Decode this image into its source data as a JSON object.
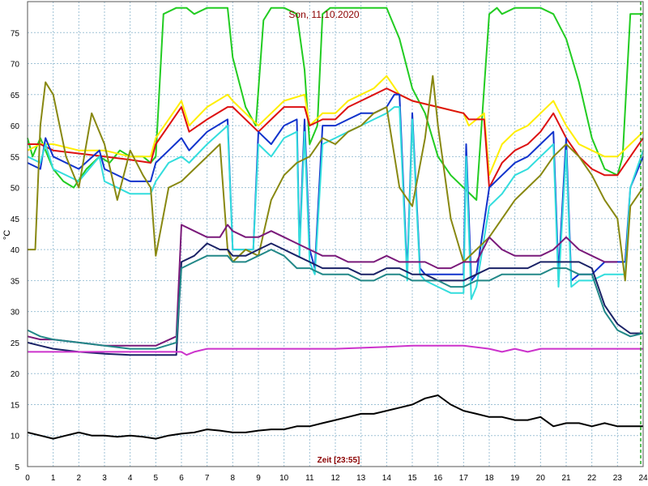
{
  "chart_data": {
    "type": "line",
    "title": "Son, 11.10.2020",
    "xlabel": "Zeit [23:55]",
    "ylabel": "°C",
    "xlim": [
      0,
      24
    ],
    "ylim": [
      5,
      80
    ],
    "x_ticks": [
      "0",
      "1",
      "2",
      "3",
      "4",
      "5",
      "6",
      "7",
      "8",
      "9",
      "10",
      "11",
      "12",
      "13",
      "14",
      "15",
      "16",
      "17",
      "18",
      "19",
      "20",
      "21",
      "22",
      "23",
      "24"
    ],
    "y_ticks": [
      "5",
      "10",
      "15",
      "20",
      "25",
      "30",
      "35",
      "40",
      "45",
      "50",
      "55",
      "60",
      "65",
      "70",
      "75"
    ],
    "grid": true,
    "series": [
      {
        "color": "#22cc22",
        "x": [
          0,
          0.2,
          0.5,
          0.7,
          1,
          1.4,
          1.8,
          2.3,
          2.8,
          3.2,
          3.6,
          4.0,
          4.5,
          4.8,
          5.0,
          5.3,
          5.8,
          6.2,
          6.5,
          7.0,
          7.5,
          7.8,
          8.0,
          8.5,
          8.9,
          9.2,
          9.5,
          10.0,
          10.5,
          10.8,
          11.0,
          11.3,
          11.5,
          11.8,
          12.0,
          12.5,
          13.0,
          13.5,
          14.0,
          14.5,
          15.0,
          15.5,
          16.0,
          16.5,
          17.0,
          17.5,
          18.0,
          18.3,
          18.5,
          19.0,
          19.5,
          20.0,
          20.5,
          21.0,
          21.5,
          22.0,
          22.5,
          23.0,
          23.2,
          23.5,
          24.0
        ],
        "y": [
          58,
          55,
          58,
          56,
          53,
          51,
          50,
          53,
          55,
          54,
          56,
          55,
          55,
          54,
          55,
          78,
          79,
          79,
          78,
          79,
          79,
          79,
          71,
          63,
          60,
          77,
          79,
          79,
          78,
          69,
          57,
          60,
          78,
          79,
          79,
          79,
          79,
          79,
          79,
          74,
          66,
          62,
          55,
          52,
          50,
          48,
          78,
          79,
          78,
          79,
          79,
          79,
          78,
          74,
          67,
          58,
          53,
          52,
          55,
          78,
          78
        ]
      },
      {
        "color": "#ffee00",
        "x": [
          0,
          0.5,
          1,
          2,
          3,
          4,
          4.8,
          5.0,
          5.5,
          6.0,
          6.3,
          7.0,
          7.8,
          8.0,
          9.0,
          9.5,
          10.0,
          10.8,
          11.0,
          11.5,
          12.0,
          12.5,
          13.0,
          13.5,
          14.0,
          14.5,
          15.0,
          16.0,
          17.0,
          17.2,
          17.8,
          18.0,
          18.5,
          19.0,
          19.5,
          20.0,
          20.5,
          21.0,
          21.5,
          22.0,
          22.5,
          23.0,
          23.5,
          24.0
        ],
        "y": [
          56,
          57,
          57,
          56,
          56,
          55,
          55,
          58,
          61,
          64,
          60,
          63,
          65,
          64,
          60,
          62,
          64,
          65,
          60,
          62,
          62,
          64,
          65,
          66,
          68,
          65,
          64,
          63,
          62,
          60,
          62,
          52,
          57,
          59,
          60,
          62,
          64,
          60,
          57,
          56,
          55,
          55,
          57,
          59
        ]
      },
      {
        "color": "#dd1111",
        "x": [
          0,
          0.5,
          1,
          2,
          3,
          4,
          4.8,
          5.0,
          5.5,
          6.0,
          6.3,
          7.0,
          7.8,
          8.0,
          9.0,
          9.5,
          10.0,
          10.8,
          11.0,
          11.5,
          12.0,
          12.5,
          13.0,
          13.5,
          14.0,
          14.5,
          15.0,
          16.0,
          17.0,
          17.2,
          17.8,
          18.0,
          18.5,
          19.0,
          19.5,
          20.0,
          20.5,
          21.0,
          21.5,
          22.0,
          22.5,
          23.0,
          23.5,
          24.0
        ],
        "y": [
          57,
          57,
          56,
          55.5,
          55,
          54.5,
          54,
          57,
          60,
          63,
          59,
          61,
          63,
          63,
          59,
          61,
          63,
          63,
          60,
          61,
          61,
          63,
          64,
          65,
          66,
          65,
          64,
          63,
          62,
          61,
          61,
          50,
          54,
          56,
          57,
          59,
          62,
          58,
          55,
          53,
          52,
          52,
          55,
          58
        ]
      },
      {
        "color": "#1133cc",
        "x": [
          0,
          0.5,
          0.7,
          1,
          2,
          2.8,
          3,
          4,
          4.8,
          5.0,
          5.5,
          6.0,
          6.3,
          7.0,
          7.8,
          8.0,
          8.8,
          9.0,
          9.5,
          10.0,
          10.5,
          10.6,
          10.8,
          11.0,
          11.2,
          11.5,
          12.0,
          12.5,
          13.0,
          13.5,
          14.0,
          14.3,
          14.5,
          14.8,
          15.0,
          15.3,
          15.5,
          16.0,
          16.5,
          17.0,
          17.1,
          17.3,
          17.5,
          18.0,
          18.5,
          19.0,
          19.5,
          20.0,
          20.5,
          20.7,
          21.0,
          21.2,
          21.5,
          22.0,
          22.5,
          23.0,
          23.3,
          23.5,
          24.0
        ],
        "y": [
          54,
          53,
          58,
          55,
          53,
          56,
          53,
          51,
          51,
          54,
          56,
          58,
          56,
          59,
          61,
          40,
          40,
          59,
          57,
          60,
          61,
          40,
          61,
          40,
          37,
          60,
          60,
          61,
          62,
          62,
          63,
          65,
          65,
          36,
          62,
          37,
          36,
          36,
          36,
          36,
          57,
          35,
          36,
          50,
          52,
          54,
          55,
          57,
          59,
          36,
          58,
          35,
          36,
          36,
          38,
          38,
          38,
          50,
          55
        ]
      },
      {
        "color": "#33dddd",
        "x": [
          0,
          0.5,
          0.7,
          1,
          2,
          2.8,
          3,
          4,
          4.8,
          5.0,
          5.5,
          6.0,
          6.3,
          7.0,
          7.8,
          8.0,
          8.8,
          9.0,
          9.5,
          10.0,
          10.5,
          10.6,
          10.8,
          11.0,
          11.2,
          11.5,
          12.0,
          12.5,
          13.0,
          13.5,
          14.0,
          14.3,
          14.5,
          14.8,
          15.0,
          15.3,
          15.5,
          16.0,
          16.5,
          17.0,
          17.1,
          17.3,
          17.5,
          18.0,
          18.5,
          19.0,
          19.5,
          20.0,
          20.5,
          20.7,
          21.0,
          21.2,
          21.5,
          22.0,
          22.5,
          23.0,
          23.3,
          23.5,
          24.0
        ],
        "y": [
          55,
          54,
          57,
          53,
          51,
          55,
          51,
          49,
          49,
          51,
          54,
          55,
          54,
          57,
          60,
          40,
          40,
          57,
          55,
          58,
          59,
          39,
          59,
          38,
          36,
          57,
          58,
          59,
          60,
          61,
          62,
          63,
          63,
          35,
          61,
          36,
          35,
          34,
          33,
          33,
          55,
          32,
          34,
          47,
          49,
          52,
          53,
          55,
          57,
          34,
          56,
          34,
          35,
          35,
          36,
          36,
          36,
          50,
          56
        ]
      },
      {
        "color": "#888811",
        "x": [
          0,
          0.3,
          0.5,
          0.7,
          1,
          1.5,
          2,
          2.5,
          3,
          3.5,
          4,
          4.5,
          4.8,
          5.0,
          5.5,
          6.0,
          6.5,
          7.0,
          7.5,
          7.8,
          8.0,
          8.5,
          9.0,
          9.5,
          10.0,
          10.5,
          11.0,
          11.5,
          12.0,
          12.5,
          13.0,
          13.5,
          14.0,
          14.5,
          15.0,
          15.5,
          15.8,
          16.0,
          16.5,
          17.0,
          17.5,
          18.0,
          18.5,
          19.0,
          19.5,
          20.0,
          20.5,
          21.0,
          21.5,
          22.0,
          22.5,
          23.0,
          23.3,
          23.5,
          24.0
        ],
        "y": [
          40,
          40,
          60,
          67,
          65,
          55,
          50,
          62,
          57,
          48,
          56,
          52,
          50,
          39,
          50,
          51,
          53,
          55,
          57,
          40,
          38,
          40,
          39,
          48,
          52,
          54,
          55,
          58,
          57,
          59,
          60,
          62,
          63,
          50,
          47,
          58,
          68,
          60,
          45,
          38,
          40,
          42,
          45,
          48,
          50,
          52,
          55,
          57,
          55,
          52,
          48,
          45,
          35,
          47,
          50
        ]
      },
      {
        "color": "#7a1a7a",
        "x": [
          0,
          0.5,
          1,
          2,
          3,
          4,
          5,
          5.8,
          6.0,
          6.5,
          7.0,
          7.5,
          7.8,
          8.0,
          8.5,
          9.0,
          9.5,
          10.0,
          10.5,
          11.0,
          11.5,
          12.0,
          12.5,
          13.0,
          13.5,
          14.0,
          14.5,
          15.0,
          15.5,
          16.0,
          16.5,
          17.0,
          17.5,
          18.0,
          18.5,
          19.0,
          19.5,
          20.0,
          20.5,
          21.0,
          21.5,
          22.0,
          22.5,
          23.0
        ],
        "y": [
          26,
          25.5,
          25.5,
          25,
          24.5,
          24.5,
          24.5,
          26,
          44,
          43,
          42,
          42,
          44,
          43,
          42,
          42,
          43,
          42,
          41,
          40,
          39,
          39,
          38,
          38,
          38,
          39,
          38,
          38,
          38,
          37,
          37,
          38,
          38,
          42,
          40,
          39,
          39,
          39,
          40,
          42,
          40,
          39,
          38,
          38
        ]
      },
      {
        "color": "#1a2266",
        "x": [
          0,
          0.5,
          1,
          2,
          3,
          4,
          5,
          5.8,
          6.0,
          6.5,
          7.0,
          7.5,
          7.8,
          8.0,
          8.5,
          9.0,
          9.5,
          10.0,
          10.5,
          11.0,
          11.5,
          12.0,
          12.5,
          13.0,
          13.5,
          14.0,
          14.5,
          15.0,
          15.5,
          16.0,
          16.5,
          17.0,
          17.5,
          18.0,
          18.5,
          19.0,
          19.5,
          20.0,
          20.5,
          21.0,
          21.5,
          22.0,
          22.5,
          23.0,
          23.5,
          24.0
        ],
        "y": [
          25,
          24.5,
          24,
          23.5,
          23.2,
          23,
          23,
          23,
          38,
          39,
          41,
          40,
          40,
          39,
          39,
          40,
          41,
          40,
          39,
          38,
          37,
          37,
          37,
          36,
          36,
          37,
          37,
          36,
          36,
          35,
          35,
          35,
          36,
          37,
          37,
          37,
          37,
          38,
          38,
          38,
          38,
          37,
          31,
          28,
          26.5,
          26.5
        ]
      },
      {
        "color": "#228888",
        "x": [
          0,
          0.5,
          1,
          2,
          3,
          4,
          5,
          5.8,
          6.0,
          6.5,
          7.0,
          7.5,
          7.8,
          8.0,
          8.5,
          9.0,
          9.5,
          10.0,
          10.5,
          11.0,
          11.5,
          12.0,
          12.5,
          13.0,
          13.5,
          14.0,
          14.5,
          15.0,
          15.5,
          16.0,
          16.5,
          17.0,
          17.5,
          18.0,
          18.5,
          19.0,
          19.5,
          20.0,
          20.5,
          21.0,
          21.5,
          22.0,
          22.5,
          23.0,
          23.5,
          24.0
        ],
        "y": [
          27,
          26,
          25.5,
          25,
          24.5,
          24,
          24,
          25,
          37,
          38,
          39,
          39,
          39,
          38,
          38,
          39,
          40,
          39,
          37,
          37,
          36,
          36,
          36,
          35,
          35,
          36,
          36,
          35,
          35,
          35,
          34,
          34,
          35,
          35,
          36,
          36,
          36,
          36,
          37,
          37,
          36,
          36,
          30,
          27,
          26,
          26.5
        ]
      },
      {
        "color": "#cc33cc",
        "x": [
          0,
          2,
          4,
          5,
          6,
          6.2,
          6.5,
          7,
          7.5,
          8,
          10,
          12,
          14,
          15,
          16,
          17,
          18,
          18.5,
          19,
          19.5,
          20,
          22,
          24
        ],
        "y": [
          23.5,
          23.5,
          23.5,
          23.5,
          23.5,
          23,
          23.5,
          24,
          24,
          24,
          24,
          24,
          24.3,
          24.5,
          24.5,
          24.5,
          24,
          23.5,
          24,
          23.5,
          24,
          24,
          24
        ]
      },
      {
        "color": "#000000",
        "x": [
          0,
          0.5,
          1,
          1.5,
          2,
          2.5,
          3,
          3.5,
          4,
          4.5,
          5,
          5.5,
          6,
          6.5,
          7,
          7.5,
          8,
          8.5,
          9,
          9.5,
          10,
          10.5,
          11,
          11.5,
          12,
          12.5,
          13,
          13.5,
          14,
          14.5,
          15,
          15.5,
          16,
          16.5,
          17,
          17.5,
          18,
          18.5,
          19,
          19.5,
          20,
          20.5,
          21,
          21.5,
          22,
          22.5,
          23,
          23.5,
          24
        ],
        "y": [
          10.5,
          10,
          9.5,
          10,
          10.5,
          10,
          10,
          9.8,
          10,
          9.8,
          9.5,
          10,
          10.3,
          10.5,
          11,
          10.8,
          10.5,
          10.5,
          10.8,
          11,
          11,
          11.5,
          11.5,
          12,
          12.5,
          13,
          13.5,
          13.5,
          14,
          14.5,
          15,
          16,
          16.5,
          15,
          14,
          13.5,
          13,
          13,
          12.5,
          12.5,
          13,
          11.5,
          12,
          12,
          11.5,
          12,
          11.5,
          11.5,
          11.5
        ]
      }
    ]
  }
}
